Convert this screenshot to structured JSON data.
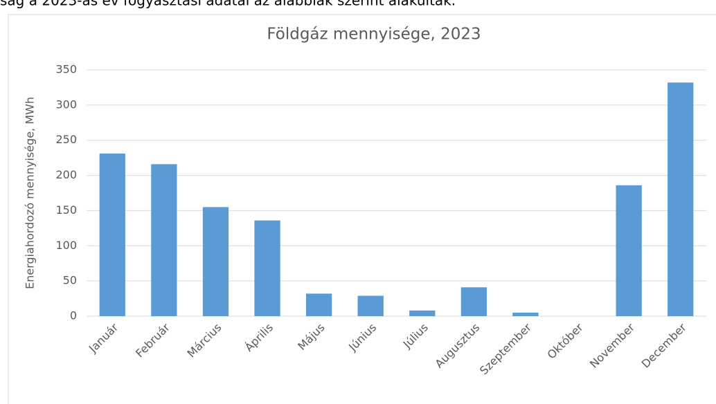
{
  "intro_text": "ság a 2023-as év fogyasztási adatai az alábbiak szerint alakultak.",
  "chart_data": {
    "type": "bar",
    "title": "Földgáz mennyisége, 2023",
    "y_label": "Energiahordozó mennyisége, MWh",
    "categories": [
      "Január",
      "Február",
      "Március",
      "Április",
      "Május",
      "Június",
      "Július",
      "Augusztus",
      "Szeptember",
      "Október",
      "November",
      "December"
    ],
    "values": [
      231,
      216,
      155,
      136,
      32,
      29,
      8,
      41,
      5,
      0,
      186,
      332
    ],
    "color": "#5b9bd5",
    "ylim": [
      0,
      350
    ],
    "yticks": [
      0,
      50,
      100,
      150,
      200,
      250,
      300,
      350
    ],
    "grid": true
  }
}
